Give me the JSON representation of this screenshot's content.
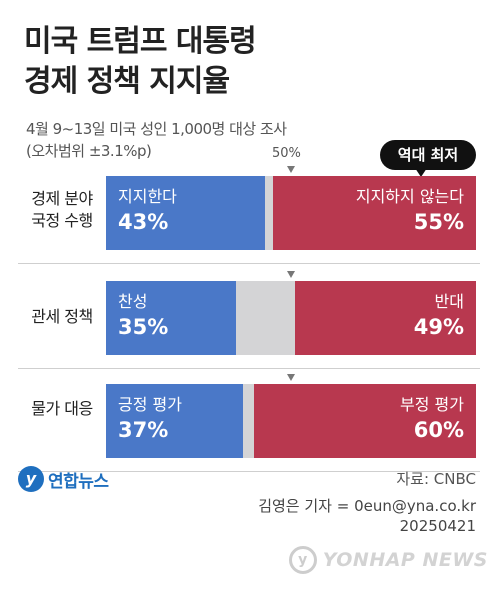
{
  "title": {
    "line1": "미국 트럼프 대통령",
    "line2": "경제 정책 지지율"
  },
  "subtitle": {
    "line1": "4월 9~13일 미국 성인 1,000명 대상 조사",
    "line2": "(오차범위 ±3.1%p)"
  },
  "reference": {
    "label": "50%",
    "value": 50
  },
  "badge": {
    "text": "역대 최저"
  },
  "chart_data": {
    "type": "bar",
    "orientation": "horizontal-stacked",
    "xlim": [
      0,
      100
    ],
    "rows": [
      {
        "label_lines": [
          "경제 분야",
          "국정 수행"
        ],
        "positive": {
          "label": "지지한다",
          "value": 43,
          "display": "43%"
        },
        "negative": {
          "label": "지지하지 않는다",
          "value": 55,
          "display": "55%"
        }
      },
      {
        "label_lines": [
          "관세 정책"
        ],
        "positive": {
          "label": "찬성",
          "value": 35,
          "display": "35%"
        },
        "negative": {
          "label": "반대",
          "value": 49,
          "display": "49%"
        }
      },
      {
        "label_lines": [
          "물가 대응"
        ],
        "positive": {
          "label": "긍정 평가",
          "value": 37,
          "display": "37%"
        },
        "negative": {
          "label": "부정 평가",
          "value": 60,
          "display": "60%"
        }
      }
    ],
    "colors": {
      "positive": "#4a78c8",
      "negative": "#b8384f",
      "neutral": "#d4d4d6"
    }
  },
  "logo": {
    "text": "연합뉴스",
    "icon": "yonhap-logo-icon"
  },
  "source": "자료: CNBC",
  "credit": {
    "line1": "김영은 기자 = 0eun@yna.co.kr",
    "line2": "20250421"
  },
  "watermark": {
    "text": "YONHAP NEWS",
    "icon": "yonhap-watermark-icon"
  }
}
